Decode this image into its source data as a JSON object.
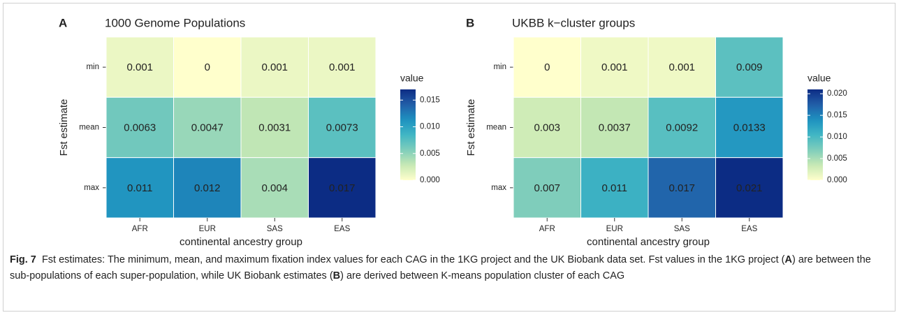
{
  "chart_data": [
    {
      "type": "heatmap",
      "panel_label": "A",
      "title": "1000 Genome Populations",
      "x_label": "continental ancestry group",
      "y_label": "Fst estimate",
      "columns": [
        "AFR",
        "EUR",
        "SAS",
        "EAS"
      ],
      "rows": [
        "min",
        "mean",
        "max"
      ],
      "values": [
        [
          0.001,
          0,
          0.001,
          0.001
        ],
        [
          0.0063,
          0.0047,
          0.0031,
          0.0073
        ],
        [
          0.011,
          0.012,
          0.004,
          0.017
        ]
      ],
      "legend_title": "value",
      "clim": [
        0,
        0.017
      ],
      "cticks": [
        {
          "value": 0,
          "label": "0.000"
        },
        {
          "value": 0.005,
          "label": "0.005"
        },
        {
          "value": 0.01,
          "label": "0.010"
        },
        {
          "value": 0.015,
          "label": "0.015"
        }
      ],
      "colorscale": [
        "#ffffcc",
        "#c7e9b4",
        "#7fcdbb",
        "#41b6c4",
        "#1d91c0",
        "#225ea8",
        "#0c2c84"
      ]
    },
    {
      "type": "heatmap",
      "panel_label": "B",
      "title": "UKBB k−cluster groups",
      "x_label": "continental ancestry group",
      "y_label": "Fst estimate",
      "columns": [
        "AFR",
        "EUR",
        "SAS",
        "EAS"
      ],
      "rows": [
        "min",
        "mean",
        "max"
      ],
      "values": [
        [
          0,
          0.001,
          0.001,
          0.009
        ],
        [
          0.003,
          0.0037,
          0.0092,
          0.0133
        ],
        [
          0.007,
          0.011,
          0.017,
          0.021
        ]
      ],
      "legend_title": "value",
      "clim": [
        0,
        0.021
      ],
      "cticks": [
        {
          "value": 0,
          "label": "0.000"
        },
        {
          "value": 0.005,
          "label": "0.005"
        },
        {
          "value": 0.01,
          "label": "0.010"
        },
        {
          "value": 0.015,
          "label": "0.015"
        },
        {
          "value": 0.02,
          "label": "0.020"
        }
      ],
      "colorscale": [
        "#ffffcc",
        "#c7e9b4",
        "#7fcdbb",
        "#41b6c4",
        "#1d91c0",
        "#225ea8",
        "#0c2c84"
      ]
    }
  ],
  "caption": {
    "label": "Fig. 7",
    "parts": [
      "Fst estimates: The minimum, mean, and maximum fixation index values for each CAG in the 1KG project and the UK Biobank data set. Fst values in the 1KG project (",
      "A",
      ") are between the sub-populations of each super-population, while UK Biobank estimates (",
      "B",
      ") are derived between K-means population cluster of each CAG"
    ]
  }
}
